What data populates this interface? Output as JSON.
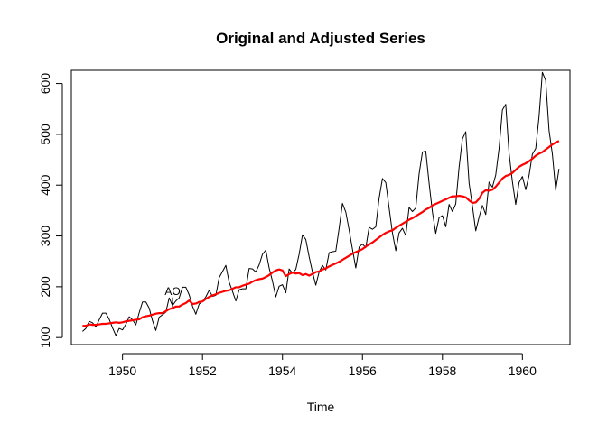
{
  "chart_data": {
    "type": "line",
    "title": "Original and Adjusted Series",
    "xlabel": "Time",
    "ylabel": "",
    "xlim": [
      1948.72,
      1961.19
    ],
    "ylim": [
      86.12,
      625.88
    ],
    "x_ticks": [
      1950,
      1952,
      1954,
      1956,
      1958,
      1960
    ],
    "y_ticks": [
      100,
      200,
      300,
      400,
      500,
      600
    ],
    "x_tick_labels": [
      "1950",
      "1952",
      "1954",
      "1956",
      "1958",
      "1960"
    ],
    "y_tick_labels": [
      "100",
      "200",
      "300",
      "400",
      "500",
      "600"
    ],
    "x_start": 1949,
    "x_step": 0.083333,
    "grid": false,
    "legend": "none",
    "series": [
      {
        "color": "#000000",
        "values": [
          112,
          118,
          132,
          129,
          121,
          135,
          148,
          148,
          136,
          119,
          104,
          118,
          115,
          126,
          141,
          135,
          125,
          149,
          170,
          170,
          158,
          133,
          114,
          140,
          145,
          150,
          178,
          163,
          172,
          178,
          199,
          199,
          184,
          162,
          146,
          166,
          171,
          180,
          193,
          181,
          183,
          218,
          230,
          242,
          209,
          191,
          172,
          194,
          196,
          196,
          236,
          235,
          229,
          243,
          264,
          272,
          237,
          211,
          180,
          201,
          204,
          188,
          235,
          227,
          234,
          264,
          302,
          293,
          259,
          229,
          203,
          229,
          242,
          233,
          267,
          269,
          270,
          315,
          364,
          347,
          312,
          274,
          237,
          278,
          284,
          277,
          317,
          313,
          318,
          374,
          413,
          405,
          355,
          306,
          271,
          306,
          315,
          301,
          356,
          348,
          355,
          422,
          465,
          467,
          404,
          347,
          305,
          336,
          340,
          318,
          362,
          348,
          363,
          435,
          491,
          505,
          404,
          359,
          310,
          337,
          360,
          342,
          406,
          396,
          420,
          472,
          548,
          559,
          463,
          407,
          362,
          405,
          417,
          391,
          419,
          461,
          472,
          535,
          622,
          606,
          508,
          461,
          390,
          432
        ]
      },
      {
        "color": "#ff0000",
        "values": [
          123,
          123,
          126,
          125,
          125,
          126,
          127,
          127,
          128,
          129,
          130,
          129,
          130,
          132,
          133,
          134,
          135,
          136,
          140,
          142,
          143,
          145,
          147,
          148,
          148,
          152,
          156,
          158,
          161,
          161,
          165,
          168,
          173,
          166,
          167,
          170,
          171,
          176,
          180,
          183,
          185,
          188,
          190,
          192,
          193,
          196,
          199,
          199,
          202,
          204,
          206,
          210,
          213,
          215,
          216,
          219,
          223,
          228,
          232,
          234,
          232,
          221,
          225,
          228,
          226,
          227,
          223,
          225,
          222,
          225,
          229,
          230,
          234,
          236,
          240,
          243,
          246,
          249,
          253,
          257,
          261,
          265,
          268,
          271,
          274,
          279,
          283,
          287,
          292,
          297,
          302,
          306,
          309,
          311,
          316,
          320,
          324,
          328,
          332,
          335,
          339,
          343,
          347,
          352,
          355,
          360,
          363,
          366,
          369,
          372,
          375,
          378,
          378,
          379,
          378,
          376,
          370,
          365,
          366,
          373,
          385,
          390,
          389,
          391,
          397,
          405,
          413,
          418,
          420,
          424,
          430,
          436,
          440,
          443,
          447,
          452,
          458,
          462,
          465,
          470,
          475,
          480,
          484,
          487
        ]
      }
    ],
    "annotations": [
      {
        "text": "AO",
        "x": 1951.25,
        "y": 170
      }
    ]
  }
}
